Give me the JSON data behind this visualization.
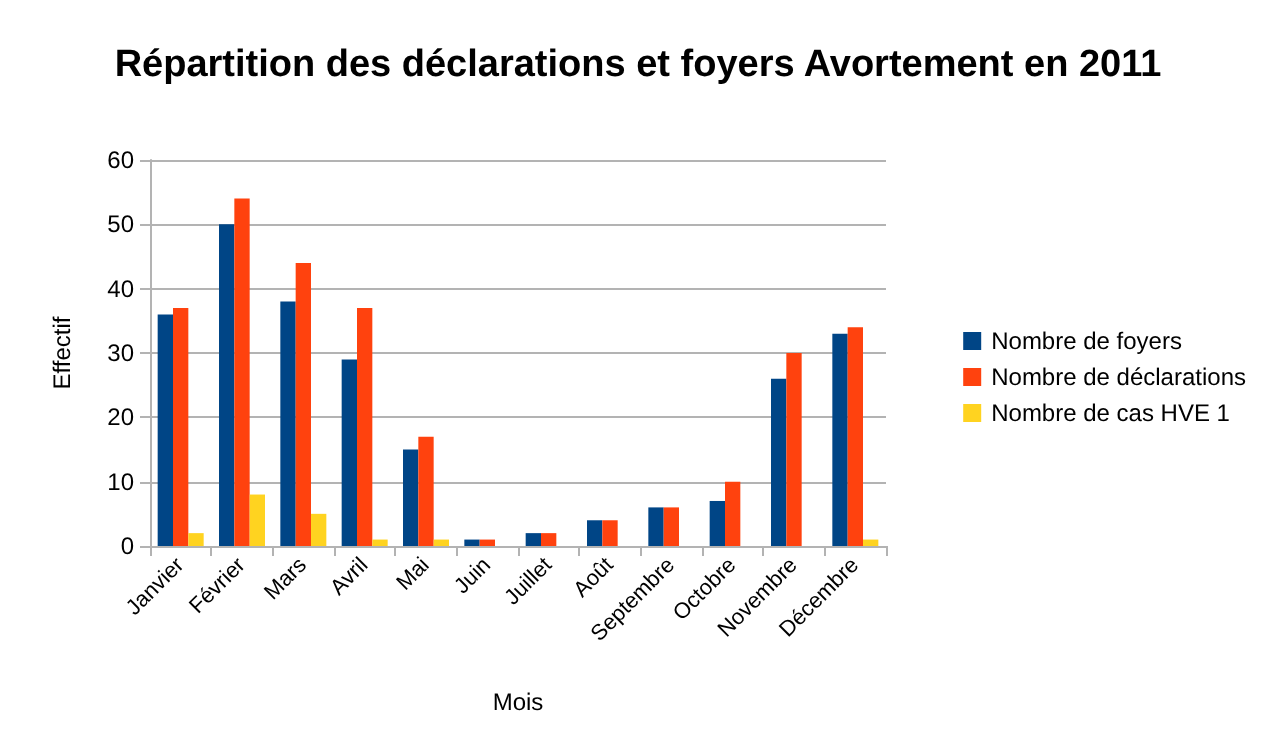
{
  "chart_data": {
    "type": "bar",
    "title": "Répartition des déclarations et foyers Avortement en 2011",
    "xlabel": "Mois",
    "ylabel": "Effectif",
    "categories": [
      "Janvier",
      "Février",
      "Mars",
      "Avril",
      "Mai",
      "Juin",
      "Juillet",
      "Août",
      "Septembre",
      "Octobre",
      "Novembre",
      "Décembre"
    ],
    "series": [
      {
        "name": "Nombre de foyers",
        "color": "#004586",
        "values": [
          36,
          50,
          38,
          29,
          15,
          1,
          2,
          4,
          6,
          7,
          26,
          33
        ]
      },
      {
        "name": "Nombre de déclarations",
        "color": "#ff420e",
        "values": [
          37,
          54,
          44,
          37,
          17,
          1,
          2,
          4,
          6,
          10,
          30,
          34
        ]
      },
      {
        "name": "Nombre de cas HVE 1",
        "color": "#ffd320",
        "values": [
          2,
          8,
          5,
          1,
          1,
          0,
          0,
          0,
          0,
          0,
          0,
          1
        ]
      }
    ],
    "ylim": [
      0,
      60
    ],
    "yticks": [
      0,
      10,
      20,
      30,
      40,
      50,
      60
    ],
    "grid": "y",
    "legend": "right"
  }
}
